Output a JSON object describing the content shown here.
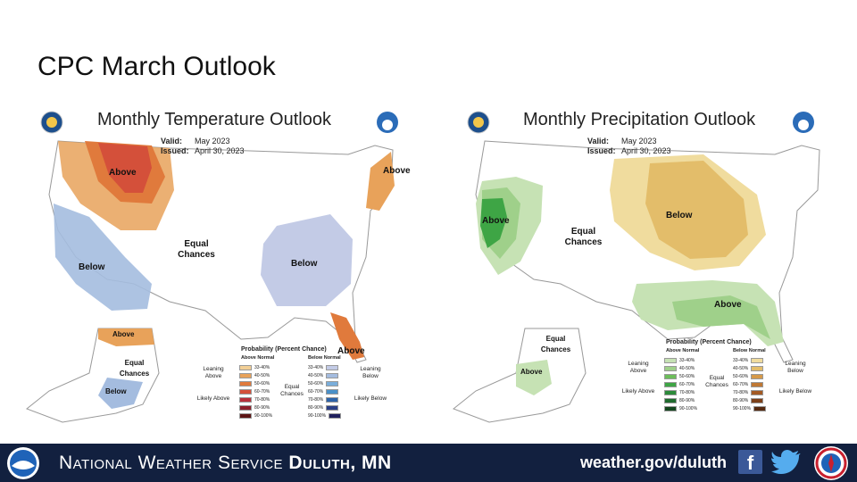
{
  "slide": {
    "title": "CPC March Outlook"
  },
  "temperature": {
    "title": "Monthly Temperature Outlook",
    "valid_label": "Valid:",
    "valid": "May 2023",
    "issued_label": "Issued:",
    "issued": "April 30, 2023",
    "regions": {
      "above_nw": "Above",
      "above_ne": "Above",
      "below_w": "Below",
      "equal": "Equal Chances",
      "below_e": "Below",
      "above_fl": "Above",
      "above_ak": "Above",
      "equal_ak": "Equal Chances",
      "below_ak": "Below"
    },
    "legend": {
      "title": "Probability (Percent Chance)",
      "above_head": "Above Normal",
      "below_head": "Below Normal",
      "leaning_above": "Leaning Above",
      "likely_above": "Likely Above",
      "equal_chances": "Equal Chances",
      "leaning_below": "Leaning Below",
      "likely_below": "Likely Below",
      "bins": [
        "33-40%",
        "40-50%",
        "50-60%",
        "60-70%",
        "70-80%",
        "80-90%",
        "90-100%"
      ],
      "above_colors": [
        "#f2cf96",
        "#e8a25a",
        "#e07a3c",
        "#d4503a",
        "#b9303a",
        "#8c1f2a",
        "#5c1414"
      ],
      "below_colors": [
        "#c3cbe6",
        "#a4bcdf",
        "#7aaedb",
        "#4a90c8",
        "#2d63a8",
        "#2a3f86",
        "#1f1f5c"
      ]
    }
  },
  "precipitation": {
    "title": "Monthly Precipitation Outlook",
    "valid_label": "Valid:",
    "valid": "May 2023",
    "issued_label": "Issued:",
    "issued": "April 30, 2023",
    "regions": {
      "above_w": "Above",
      "equal": "Equal Chances",
      "below_mw": "Below",
      "above_se": "Above",
      "equal_ak": "Equal Chances",
      "above_ak": "Above"
    },
    "legend": {
      "title": "Probability (Percent Chance)",
      "above_head": "Above Normal",
      "below_head": "Below Normal",
      "leaning_above": "Leaning Above",
      "likely_above": "Likely Above",
      "equal_chances": "Equal Chances",
      "leaning_below": "Leaning Below",
      "likely_below": "Likely Below",
      "bins": [
        "33-40%",
        "40-50%",
        "50-60%",
        "60-70%",
        "70-80%",
        "80-90%",
        "90-100%"
      ],
      "above_colors": [
        "#c6e2b4",
        "#9fd08a",
        "#6cbd5a",
        "#3ea545",
        "#2c8a3a",
        "#1f6b2e",
        "#14461e"
      ],
      "below_colors": [
        "#f0dc9e",
        "#e3bd6a",
        "#d69a4a",
        "#bf7834",
        "#a35a24",
        "#7d4019",
        "#552a10"
      ]
    }
  },
  "footer": {
    "org": "National Weather Service",
    "office": "Duluth, MN",
    "url": "weather.gov/duluth",
    "facebook_icon": "f"
  }
}
